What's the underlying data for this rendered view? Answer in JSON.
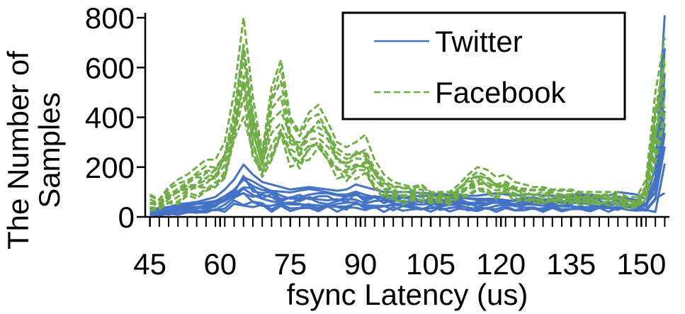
{
  "chart_data": {
    "type": "line",
    "xlabel": "fsync Latency (us)",
    "ylabel": "The Number of Samples",
    "xlim": [
      44,
      156
    ],
    "ylim": [
      0,
      820
    ],
    "x_ticks": [
      45,
      60,
      75,
      90,
      105,
      120,
      135,
      150
    ],
    "y_ticks": [
      0,
      200,
      400,
      600,
      800
    ],
    "grid": false,
    "legend": {
      "placement": "top-right",
      "box": true
    },
    "x": [
      45,
      47,
      49,
      51,
      53,
      55,
      57,
      59,
      61,
      63,
      65,
      67,
      69,
      71,
      73,
      75,
      77,
      79,
      81,
      83,
      85,
      87,
      89,
      91,
      93,
      95,
      97,
      99,
      101,
      103,
      105,
      107,
      109,
      111,
      113,
      115,
      117,
      119,
      121,
      123,
      125,
      127,
      129,
      131,
      133,
      135,
      137,
      139,
      141,
      143,
      145,
      147,
      149,
      151,
      153,
      155
    ],
    "series": [
      {
        "name": "Twitter",
        "color": "#4472C4",
        "style": "solid",
        "envelope_high": [
          30,
          35,
          40,
          50,
          55,
          60,
          70,
          80,
          110,
          150,
          210,
          170,
          140,
          130,
          120,
          110,
          115,
          120,
          115,
          110,
          105,
          110,
          130,
          120,
          110,
          100,
          100,
          100,
          100,
          95,
          95,
          90,
          90,
          90,
          85,
          85,
          90,
          95,
          90,
          85,
          90,
          90,
          85,
          85,
          85,
          90,
          90,
          90,
          85,
          85,
          100,
          95,
          90,
          70,
          200,
          810
        ],
        "envelope_low": [
          5,
          5,
          5,
          8,
          10,
          12,
          15,
          15,
          20,
          25,
          30,
          25,
          25,
          20,
          20,
          20,
          20,
          20,
          20,
          20,
          20,
          20,
          25,
          20,
          20,
          20,
          20,
          20,
          20,
          20,
          20,
          20,
          20,
          20,
          20,
          20,
          20,
          20,
          20,
          20,
          20,
          20,
          20,
          20,
          20,
          20,
          20,
          20,
          20,
          20,
          20,
          20,
          20,
          15,
          20,
          30
        ]
      },
      {
        "name": "Facebook",
        "color": "#70AD47",
        "style": "dashed",
        "envelope_high": [
          90,
          70,
          120,
          150,
          170,
          200,
          230,
          230,
          300,
          500,
          800,
          480,
          260,
          520,
          630,
          400,
          340,
          420,
          450,
          380,
          300,
          280,
          300,
          330,
          230,
          170,
          140,
          130,
          120,
          130,
          100,
          100,
          100,
          130,
          170,
          200,
          190,
          160,
          170,
          140,
          130,
          120,
          120,
          110,
          110,
          110,
          100,
          100,
          100,
          100,
          100,
          80,
          80,
          150,
          500,
          720
        ],
        "envelope_low": [
          20,
          25,
          40,
          50,
          60,
          70,
          80,
          100,
          150,
          250,
          400,
          200,
          150,
          200,
          250,
          200,
          180,
          220,
          250,
          200,
          150,
          130,
          150,
          140,
          100,
          70,
          60,
          50,
          50,
          60,
          50,
          50,
          50,
          60,
          80,
          90,
          80,
          70,
          80,
          60,
          55,
          50,
          50,
          50,
          50,
          50,
          45,
          45,
          45,
          45,
          40,
          30,
          30,
          60,
          200,
          300
        ]
      }
    ]
  }
}
